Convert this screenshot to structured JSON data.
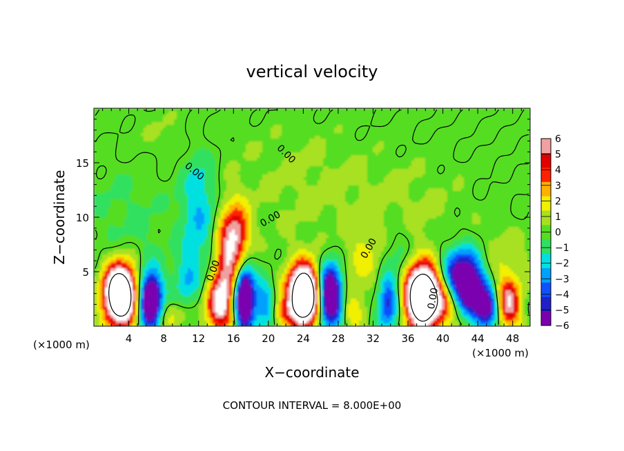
{
  "chart_data": {
    "type": "heatmap",
    "title": "vertical velocity",
    "xlabel": "X−coordinate",
    "ylabel": "Z−coordinate",
    "x_unit_left": "(×1000 m)",
    "x_unit_right": "(×1000 m)",
    "footer": "CONTOUR INTERVAL = 8.000E+00",
    "xlim": [
      0,
      50
    ],
    "ylim": [
      0,
      20
    ],
    "x_ticks": [
      4,
      8,
      12,
      16,
      20,
      24,
      28,
      32,
      36,
      40,
      44,
      48
    ],
    "y_ticks": [
      5,
      10,
      15
    ],
    "colorbar": {
      "min": -6,
      "max": 6,
      "tick_values": [
        6,
        5,
        4,
        3,
        2,
        1,
        0,
        -1,
        -2,
        -3,
        -4,
        -5,
        -6
      ],
      "tick_labels": [
        "6",
        "5",
        "4",
        "3",
        "2",
        "1",
        "0",
        "−1",
        "−2",
        "−3",
        "−4",
        "−5",
        "−6"
      ],
      "colors": [
        "#7a00b0",
        "#2020c8",
        "#1050ff",
        "#00a0ff",
        "#00e0e0",
        "#30e060",
        "#55dd22",
        "#a8e020",
        "#f0f000",
        "#ffb000",
        "#ff2000",
        "#e00000",
        "#f0a0a0"
      ]
    },
    "contour_labels": [
      {
        "text": "0.00",
        "x": 11.3,
        "y": 14.0,
        "angle": 40
      },
      {
        "text": "0.00",
        "x": 21.8,
        "y": 15.6,
        "angle": 45
      },
      {
        "text": "0.00",
        "x": 20.4,
        "y": 9.6,
        "angle": -30
      },
      {
        "text": "0.00",
        "x": 14.0,
        "y": 5.0,
        "angle": -70
      },
      {
        "text": "0.00",
        "x": 31.8,
        "y": 7.0,
        "angle": -60
      },
      {
        "text": "0.00",
        "x": 39.2,
        "y": 2.5,
        "angle": -80
      }
    ],
    "features": [
      {
        "x": 3.0,
        "z": 2.9,
        "sx": 1.3,
        "sz": 1.9,
        "w": 14.0
      },
      {
        "x": 6.5,
        "z": 2.4,
        "sx": 0.9,
        "sz": 1.7,
        "w": -9.0
      },
      {
        "x": 3.8,
        "z": 9.0,
        "sx": 3.5,
        "sz": 5.5,
        "w": -0.6
      },
      {
        "x": 9.0,
        "z": 1.0,
        "sx": 1.2,
        "sz": 1.0,
        "w": 1.8
      },
      {
        "x": 10.5,
        "z": 4.0,
        "sx": 1.0,
        "sz": 1.8,
        "w": -1.8
      },
      {
        "x": 12.0,
        "z": 10.5,
        "sx": 1.4,
        "sz": 4.2,
        "w": -2.3
      },
      {
        "x": 15.2,
        "z": 5.0,
        "sx": 1.0,
        "sz": 3.3,
        "w": 5.5
      },
      {
        "x": 16.5,
        "z": 8.5,
        "sx": 1.0,
        "sz": 2.0,
        "w": 4.5
      },
      {
        "x": 14.0,
        "z": 1.8,
        "sx": 1.0,
        "sz": 1.5,
        "w": 5.0
      },
      {
        "x": 17.2,
        "z": 2.5,
        "sx": 0.8,
        "sz": 2.0,
        "w": -9.0
      },
      {
        "x": 19.5,
        "z": 2.0,
        "sx": 0.9,
        "sz": 1.6,
        "w": -3.0
      },
      {
        "x": 21.5,
        "z": 1.2,
        "sx": 0.8,
        "sz": 0.9,
        "w": 2.5
      },
      {
        "x": 24.1,
        "z": 2.8,
        "sx": 1.3,
        "sz": 1.9,
        "w": 14.0
      },
      {
        "x": 27.0,
        "z": 2.8,
        "sx": 1.0,
        "sz": 1.9,
        "w": -9.5
      },
      {
        "x": 29.5,
        "z": 1.5,
        "sx": 1.0,
        "sz": 1.3,
        "w": 2.0
      },
      {
        "x": 30.8,
        "z": 6.0,
        "sx": 1.5,
        "sz": 2.0,
        "w": 1.6
      },
      {
        "x": 33.7,
        "z": 2.0,
        "sx": 0.8,
        "sz": 1.6,
        "w": -4.5
      },
      {
        "x": 34.8,
        "z": 5.5,
        "sx": 1.2,
        "sz": 2.5,
        "w": -1.2
      },
      {
        "x": 37.7,
        "z": 2.7,
        "sx": 1.4,
        "sz": 2.0,
        "w": 14.0
      },
      {
        "x": 40.2,
        "z": 2.0,
        "sx": 1.0,
        "sz": 1.5,
        "w": 2.5
      },
      {
        "x": 42.3,
        "z": 4.6,
        "sx": 1.6,
        "sz": 1.7,
        "w": -7.0
      },
      {
        "x": 43.3,
        "z": 3.0,
        "sx": 0.9,
        "sz": 1.2,
        "w": -4.0
      },
      {
        "x": 45.0,
        "z": 1.6,
        "sx": 1.0,
        "sz": 1.3,
        "w": -6.5
      },
      {
        "x": 47.5,
        "z": 2.0,
        "sx": 1.0,
        "sz": 1.6,
        "w": 6.0
      },
      {
        "x": 47.0,
        "z": 6.0,
        "sx": 2.0,
        "sz": 2.0,
        "w": 1.2
      },
      {
        "x": 24.0,
        "z": 13.0,
        "sx": 6.0,
        "sz": 4.0,
        "w": 0.6
      },
      {
        "x": 8.0,
        "z": 17.5,
        "sx": 5.0,
        "sz": 2.0,
        "w": 0.5
      },
      {
        "x": 36.0,
        "z": 11.0,
        "sx": 5.0,
        "sz": 3.0,
        "w": 0.6
      }
    ]
  }
}
